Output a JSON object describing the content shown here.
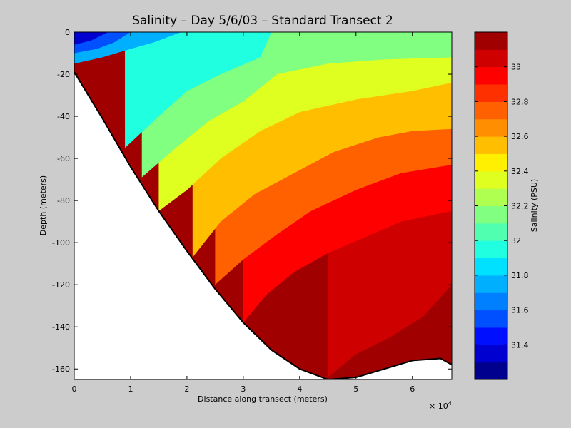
{
  "chart_data": {
    "type": "contour",
    "title": "Salinity – Day 5/6/03 – Standard Transect 2",
    "xlabel": "Distance along transect (meters)",
    "ylabel": "Depth (meters)",
    "x_multiplier_base": "× 10",
    "x_multiplier_exp": "4",
    "xlim": [
      0,
      6.7
    ],
    "ylim": [
      -165,
      0
    ],
    "xticks": [
      0,
      1,
      2,
      3,
      4,
      5,
      6
    ],
    "yticks": [
      0,
      -20,
      -40,
      -60,
      -80,
      -100,
      -120,
      -140,
      -160
    ],
    "colorbar": {
      "label": "Salinity (PSU)",
      "range": [
        31.2,
        33.2
      ],
      "ticks": [
        31.4,
        31.6,
        31.8,
        32.0,
        32.2,
        32.4,
        32.6,
        32.8,
        33.0
      ],
      "tick_labels": [
        "31.4",
        "31.6",
        "31.8",
        "32",
        "32.2",
        "32.4",
        "32.6",
        "32.8",
        "33"
      ],
      "levels": [
        {
          "lo": 31.2,
          "hi": 31.3,
          "color": "#00008f"
        },
        {
          "lo": 31.3,
          "hi": 31.4,
          "color": "#0000d0"
        },
        {
          "lo": 31.4,
          "hi": 31.5,
          "color": "#0010ff"
        },
        {
          "lo": 31.5,
          "hi": 31.6,
          "color": "#0050ff"
        },
        {
          "lo": 31.6,
          "hi": 31.7,
          "color": "#0080ff"
        },
        {
          "lo": 31.7,
          "hi": 31.8,
          "color": "#00b0ff"
        },
        {
          "lo": 31.8,
          "hi": 31.9,
          "color": "#00e0ff"
        },
        {
          "lo": 31.9,
          "hi": 32.0,
          "color": "#20ffdf"
        },
        {
          "lo": 32.0,
          "hi": 32.1,
          "color": "#50ffaf"
        },
        {
          "lo": 32.1,
          "hi": 32.2,
          "color": "#80ff80"
        },
        {
          "lo": 32.2,
          "hi": 32.3,
          "color": "#afff50"
        },
        {
          "lo": 32.3,
          "hi": 32.4,
          "color": "#dfff20"
        },
        {
          "lo": 32.4,
          "hi": 32.5,
          "color": "#ffef00"
        },
        {
          "lo": 32.5,
          "hi": 32.6,
          "color": "#ffbf00"
        },
        {
          "lo": 32.6,
          "hi": 32.7,
          "color": "#ff8f00"
        },
        {
          "lo": 32.7,
          "hi": 32.8,
          "color": "#ff6000"
        },
        {
          "lo": 32.8,
          "hi": 32.9,
          "color": "#ff3000"
        },
        {
          "lo": 32.9,
          "hi": 33.0,
          "color": "#ff0000"
        },
        {
          "lo": 33.0,
          "hi": 33.1,
          "color": "#cf0000"
        },
        {
          "lo": 33.1,
          "hi": 33.2,
          "color": "#a00000"
        }
      ]
    },
    "bathymetry": {
      "x": [
        0,
        0.5,
        1.0,
        1.5,
        2.0,
        2.5,
        3.0,
        3.5,
        4.0,
        4.5,
        5.0,
        5.5,
        6.0,
        6.5,
        6.7
      ],
      "depth": [
        -19,
        -41,
        -64,
        -85,
        -104,
        -122,
        -138,
        -151,
        -160,
        -165,
        -164,
        -160,
        -156,
        -155,
        -158
      ]
    },
    "contour_lines": [
      {
        "level": 31.4,
        "x": [
          0,
          0.3,
          0.6
        ],
        "depth": [
          -6,
          -4,
          0
        ]
      },
      {
        "level": 31.6,
        "x": [
          0,
          0.4,
          0.7,
          1.0
        ],
        "depth": [
          -10,
          -8,
          -5,
          0
        ]
      },
      {
        "level": 31.8,
        "x": [
          0,
          0.5,
          1.0,
          1.4,
          1.9
        ],
        "depth": [
          -15,
          -12,
          -8,
          -5,
          0
        ]
      },
      {
        "level": 32.0,
        "x": [
          0.9,
          1.5,
          2.0,
          2.6,
          3.3,
          3.5
        ],
        "depth": [
          -55,
          -40,
          -28,
          -20,
          -12,
          0
        ]
      },
      {
        "level": 32.2,
        "x": [
          1.2,
          1.8,
          2.4,
          3.0,
          3.6,
          4.5,
          5.5,
          6.7
        ],
        "depth": [
          -69,
          -55,
          -42,
          -33,
          -20,
          -15,
          -13,
          -12
        ]
      },
      {
        "level": 32.4,
        "x": [
          1.5,
          2.0,
          2.6,
          3.3,
          4.0,
          5.0,
          6.0,
          6.7
        ],
        "depth": [
          -85,
          -75,
          -60,
          -47,
          -38,
          -32,
          -28,
          -24
        ]
      },
      {
        "level": 32.6,
        "x": [
          2.1,
          2.6,
          3.2,
          3.9,
          4.6,
          5.4,
          6.0,
          6.7
        ],
        "depth": [
          -107,
          -90,
          -77,
          -67,
          -57,
          -50,
          -47,
          -46
        ]
      },
      {
        "level": 32.8,
        "x": [
          2.5,
          3.0,
          3.6,
          4.2,
          5.0,
          5.8,
          6.7
        ],
        "depth": [
          -120,
          -108,
          -96,
          -85,
          -75,
          -67,
          -63
        ]
      },
      {
        "level": 33.0,
        "x": [
          3.0,
          3.4,
          3.9,
          4.5,
          5.2,
          5.8,
          6.7
        ],
        "depth": [
          -138,
          -125,
          -114,
          -105,
          -97,
          -90,
          -85
        ]
      },
      {
        "level": 33.1,
        "x": [
          4.5,
          5.0,
          5.6,
          6.2,
          6.7
        ],
        "depth": [
          -164,
          -153,
          -145,
          -135,
          -120
        ]
      }
    ]
  }
}
